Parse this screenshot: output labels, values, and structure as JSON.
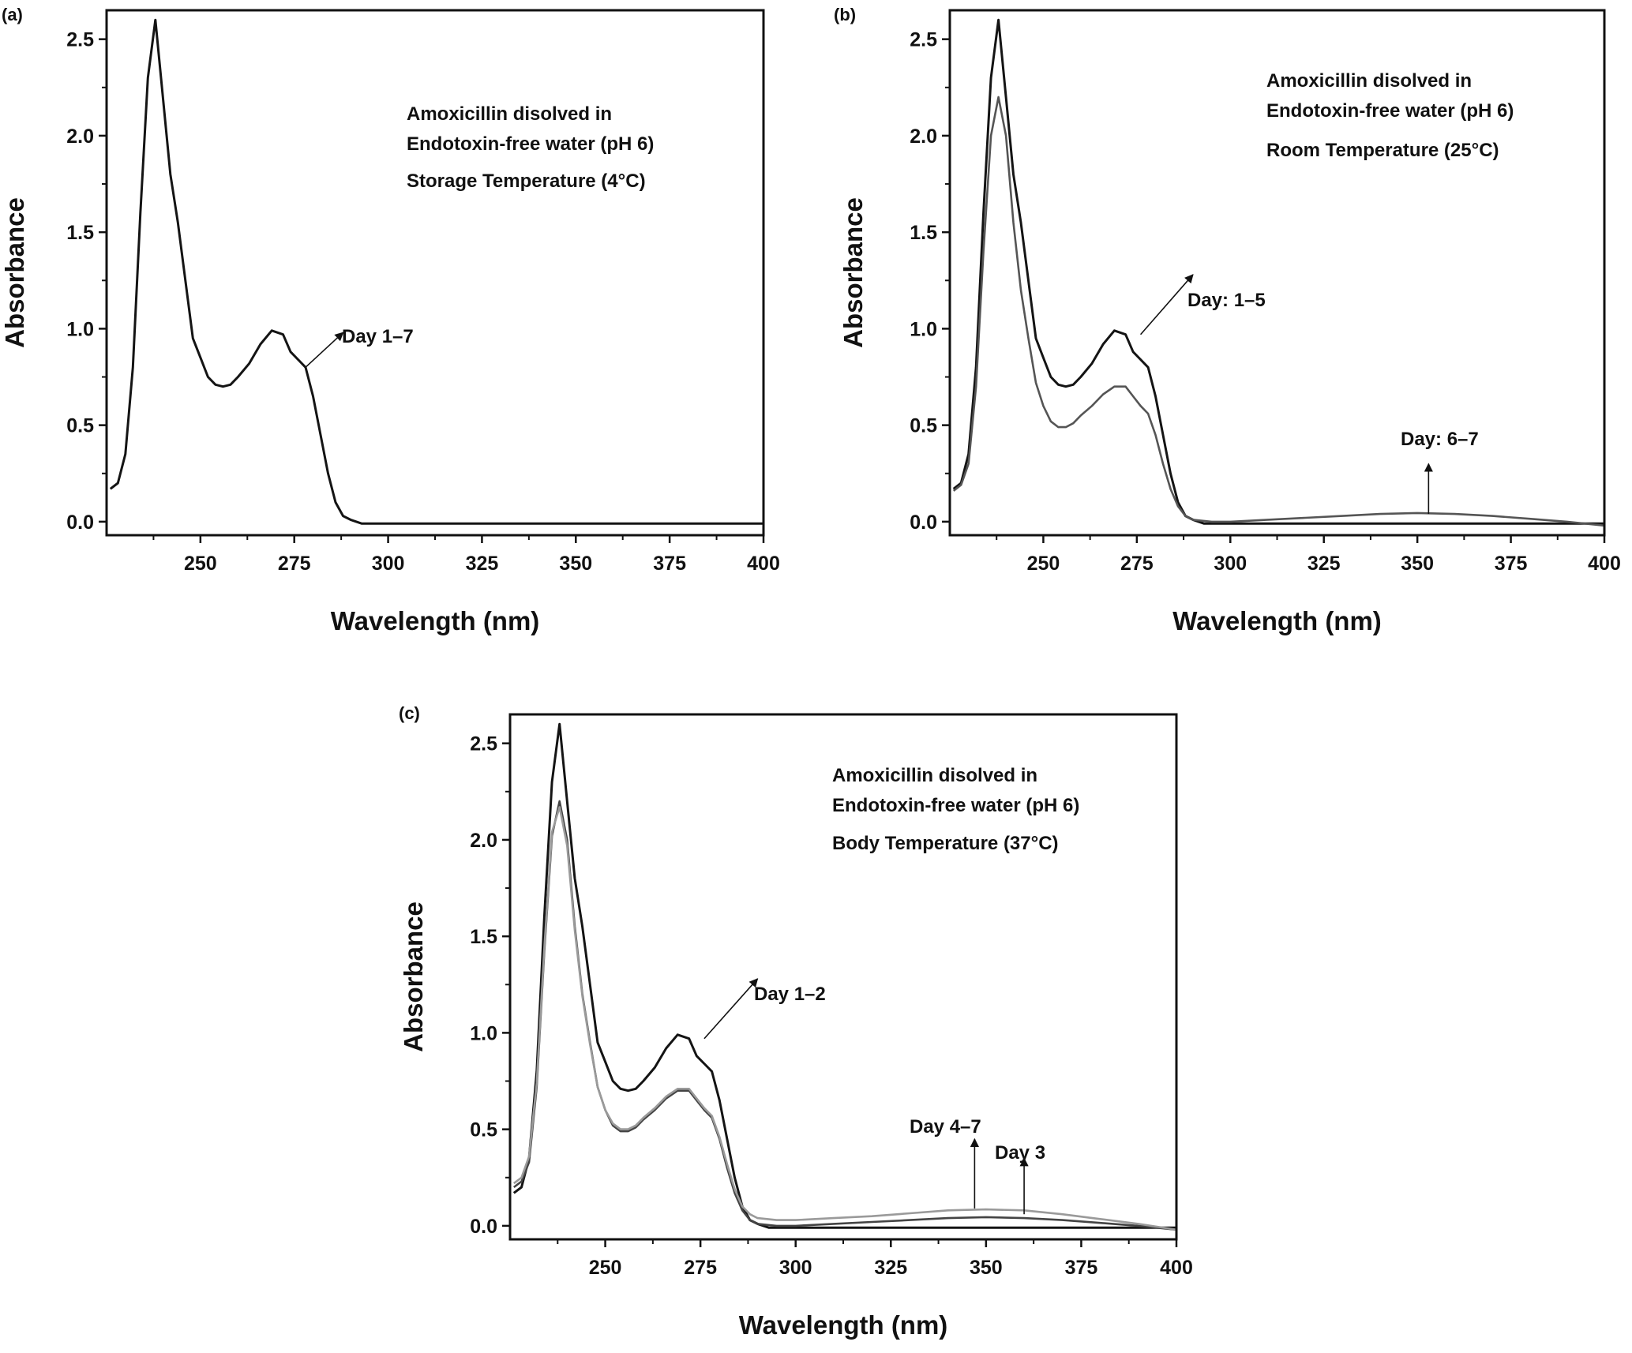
{
  "figure": {
    "colors": {
      "dark": "#141414",
      "gray": "#8a8a8a",
      "axis": "#111111"
    }
  },
  "chart_data": [
    {
      "type": "line",
      "panel_label": "(a)",
      "xlabel": "Wavelength (nm)",
      "ylabel": "Absorbance",
      "xlim": [
        225,
        400
      ],
      "ylim": [
        -0.07,
        2.65
      ],
      "xticks": [
        250,
        275,
        300,
        325,
        350,
        375,
        400
      ],
      "yticks": [
        0.0,
        0.5,
        1.0,
        1.5,
        2.0,
        2.5
      ],
      "text_lines": [
        "Amoxicillin disolved in",
        "Endotoxin-free water (pH 6)",
        "Storage Temperature (4°C)"
      ],
      "series": [
        {
          "name": "Day 1–7",
          "color": "#141414",
          "x": [
            226,
            228,
            230,
            232,
            234,
            236,
            238,
            240,
            242,
            244,
            246,
            248,
            250,
            252,
            254,
            256,
            258,
            260,
            263,
            266,
            269,
            272,
            274,
            276,
            278,
            280,
            282,
            284,
            286,
            288,
            290,
            293,
            297,
            300,
            320,
            350,
            380,
            400
          ],
          "y": [
            0.17,
            0.2,
            0.35,
            0.8,
            1.6,
            2.3,
            2.6,
            2.2,
            1.8,
            1.55,
            1.25,
            0.95,
            0.85,
            0.75,
            0.71,
            0.7,
            0.71,
            0.75,
            0.82,
            0.92,
            0.99,
            0.97,
            0.88,
            0.84,
            0.8,
            0.65,
            0.45,
            0.25,
            0.1,
            0.03,
            0.01,
            -0.01,
            -0.01,
            -0.01,
            -0.01,
            -0.01,
            -0.01,
            -0.01
          ]
        }
      ],
      "annotations": [
        {
          "text": "Day 1–7",
          "arrow_from": [
            278,
            0.8
          ],
          "arrow_to": [
            288,
            0.98
          ]
        }
      ]
    },
    {
      "type": "line",
      "panel_label": "(b)",
      "xlabel": "Wavelength (nm)",
      "ylabel": "Absorbance",
      "xlim": [
        225,
        400
      ],
      "ylim": [
        -0.07,
        2.65
      ],
      "xticks": [
        250,
        275,
        300,
        325,
        350,
        375,
        400
      ],
      "yticks": [
        0.0,
        0.5,
        1.0,
        1.5,
        2.0,
        2.5
      ],
      "text_lines": [
        "Amoxicillin disolved in",
        "Endotoxin-free water (pH 6)",
        "Room Temperature (25°C)"
      ],
      "series": [
        {
          "name": "Day: 1–5",
          "color": "#141414",
          "x": [
            226,
            228,
            230,
            232,
            234,
            236,
            238,
            240,
            242,
            244,
            246,
            248,
            250,
            252,
            254,
            256,
            258,
            260,
            263,
            266,
            269,
            272,
            274,
            276,
            278,
            280,
            282,
            284,
            286,
            288,
            290,
            293,
            297,
            300,
            320,
            350,
            380,
            400
          ],
          "y": [
            0.17,
            0.2,
            0.35,
            0.8,
            1.6,
            2.3,
            2.6,
            2.2,
            1.8,
            1.55,
            1.25,
            0.95,
            0.85,
            0.75,
            0.71,
            0.7,
            0.71,
            0.75,
            0.82,
            0.92,
            0.99,
            0.97,
            0.88,
            0.84,
            0.8,
            0.65,
            0.45,
            0.25,
            0.1,
            0.03,
            0.01,
            -0.01,
            -0.01,
            -0.01,
            -0.01,
            -0.01,
            -0.01,
            -0.01
          ]
        },
        {
          "name": "Day: 6–7",
          "color": "#555555",
          "x": [
            226,
            228,
            230,
            232,
            234,
            236,
            238,
            240,
            242,
            244,
            246,
            248,
            250,
            252,
            254,
            256,
            258,
            260,
            263,
            266,
            269,
            272,
            274,
            276,
            278,
            280,
            282,
            284,
            286,
            288,
            290,
            295,
            300,
            310,
            320,
            330,
            340,
            350,
            360,
            370,
            380,
            390,
            400
          ],
          "y": [
            0.16,
            0.19,
            0.3,
            0.7,
            1.4,
            2.0,
            2.2,
            2.0,
            1.55,
            1.2,
            0.95,
            0.72,
            0.6,
            0.52,
            0.49,
            0.49,
            0.51,
            0.55,
            0.6,
            0.66,
            0.7,
            0.7,
            0.65,
            0.6,
            0.56,
            0.45,
            0.3,
            0.17,
            0.08,
            0.03,
            0.01,
            0.0,
            0.0,
            0.01,
            0.02,
            0.03,
            0.04,
            0.045,
            0.04,
            0.03,
            0.015,
            0.0,
            -0.02
          ]
        }
      ],
      "annotations": [
        {
          "text": "Day: 1–5",
          "arrow_from": [
            276,
            0.97
          ],
          "arrow_to": [
            290,
            1.28
          ]
        },
        {
          "text": "Day: 6–7",
          "arrow_from": [
            353,
            0.04
          ],
          "arrow_to": [
            353,
            0.3
          ]
        }
      ]
    },
    {
      "type": "line",
      "panel_label": "(c)",
      "xlabel": "Wavelength (nm)",
      "ylabel": "Absorbance",
      "xlim": [
        225,
        400
      ],
      "ylim": [
        -0.07,
        2.65
      ],
      "xticks": [
        250,
        275,
        300,
        325,
        350,
        375,
        400
      ],
      "yticks": [
        0.0,
        0.5,
        1.0,
        1.5,
        2.0,
        2.5
      ],
      "text_lines": [
        "Amoxicillin disolved in",
        "Endotoxin-free water (pH 6)",
        "Body Temperature (37°C)"
      ],
      "series": [
        {
          "name": "Day 1–2",
          "color": "#141414",
          "x": [
            226,
            228,
            230,
            232,
            234,
            236,
            238,
            240,
            242,
            244,
            246,
            248,
            250,
            252,
            254,
            256,
            258,
            260,
            263,
            266,
            269,
            272,
            274,
            276,
            278,
            280,
            282,
            284,
            286,
            288,
            290,
            293,
            297,
            300,
            320,
            350,
            380,
            400
          ],
          "y": [
            0.17,
            0.2,
            0.35,
            0.8,
            1.6,
            2.3,
            2.6,
            2.2,
            1.8,
            1.55,
            1.25,
            0.95,
            0.85,
            0.75,
            0.71,
            0.7,
            0.71,
            0.75,
            0.82,
            0.92,
            0.99,
            0.97,
            0.88,
            0.84,
            0.8,
            0.65,
            0.45,
            0.25,
            0.1,
            0.03,
            0.01,
            -0.01,
            -0.01,
            -0.01,
            -0.01,
            -0.01,
            -0.01,
            -0.01
          ]
        },
        {
          "name": "Day 3",
          "color": "#444444",
          "x": [
            226,
            228,
            230,
            232,
            234,
            236,
            238,
            240,
            242,
            244,
            246,
            248,
            250,
            252,
            254,
            256,
            258,
            260,
            263,
            266,
            269,
            272,
            274,
            276,
            278,
            280,
            282,
            284,
            286,
            288,
            290,
            295,
            300,
            310,
            320,
            330,
            340,
            350,
            360,
            370,
            380,
            390,
            400
          ],
          "y": [
            0.2,
            0.23,
            0.33,
            0.72,
            1.42,
            2.02,
            2.2,
            2.0,
            1.55,
            1.2,
            0.95,
            0.72,
            0.6,
            0.52,
            0.49,
            0.49,
            0.51,
            0.55,
            0.6,
            0.66,
            0.7,
            0.7,
            0.65,
            0.6,
            0.56,
            0.45,
            0.3,
            0.17,
            0.08,
            0.03,
            0.01,
            0.0,
            0.0,
            0.01,
            0.02,
            0.03,
            0.04,
            0.045,
            0.04,
            0.03,
            0.015,
            0.0,
            -0.02
          ]
        },
        {
          "name": "Day 4–7",
          "color": "#9a9a9a",
          "x": [
            226,
            228,
            230,
            232,
            234,
            236,
            238,
            240,
            242,
            244,
            246,
            248,
            250,
            252,
            254,
            256,
            258,
            260,
            263,
            266,
            269,
            272,
            274,
            276,
            278,
            280,
            282,
            284,
            286,
            288,
            290,
            295,
            300,
            310,
            320,
            330,
            340,
            350,
            360,
            370,
            380,
            390,
            400
          ],
          "y": [
            0.22,
            0.25,
            0.36,
            0.74,
            1.44,
            2.04,
            2.17,
            1.97,
            1.53,
            1.19,
            0.94,
            0.72,
            0.6,
            0.53,
            0.5,
            0.5,
            0.52,
            0.56,
            0.61,
            0.67,
            0.71,
            0.71,
            0.66,
            0.61,
            0.57,
            0.46,
            0.32,
            0.19,
            0.1,
            0.06,
            0.04,
            0.03,
            0.03,
            0.04,
            0.05,
            0.065,
            0.08,
            0.085,
            0.08,
            0.06,
            0.035,
            0.01,
            -0.02
          ]
        }
      ],
      "annotations": [
        {
          "text": "Day 1–2",
          "arrow_from": [
            276,
            0.97
          ],
          "arrow_to": [
            290,
            1.28
          ]
        },
        {
          "text": "Day 4–7",
          "arrow_from": [
            347,
            0.09
          ],
          "arrow_to": [
            347,
            0.45
          ]
        },
        {
          "text": "Day 3",
          "arrow_from": [
            360,
            0.06
          ],
          "arrow_to": [
            360,
            0.35
          ]
        }
      ]
    }
  ]
}
